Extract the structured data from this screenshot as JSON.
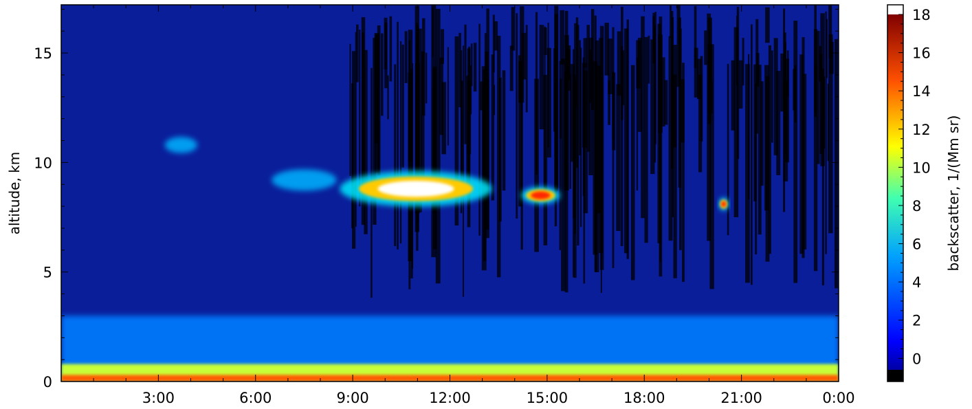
{
  "chart_data": {
    "type": "heatmap",
    "title": "",
    "xlabel": "",
    "ylabel": "altitude, km",
    "x_tick_labels": [
      "3:00",
      "6:00",
      "9:00",
      "12:00",
      "15:00",
      "18:00",
      "21:00",
      "0:00"
    ],
    "x_ticks_hours": [
      3,
      6,
      9,
      12,
      15,
      18,
      21,
      24
    ],
    "xlim_hours": [
      0,
      24
    ],
    "y_ticks": [
      0,
      5,
      10,
      15
    ],
    "ylim": [
      0,
      17.2
    ],
    "colorbar": {
      "label": "backscatter, 1/(Mm sr)",
      "ticks": [
        0,
        2,
        4,
        6,
        8,
        10,
        12,
        14,
        16,
        18
      ],
      "range": [
        -0.6,
        18
      ],
      "colormap": "jet",
      "over_color": "#ffffff",
      "under_color": "#000000"
    },
    "features": [
      {
        "kind": "boundary_layer",
        "t_start": 0,
        "t_end": 24,
        "alt_top_km": 3.0,
        "backscatter": 4
      },
      {
        "kind": "surface_layer",
        "t_start": 0,
        "t_end": 24,
        "alt_top_km": 0.8,
        "backscatter": 10
      },
      {
        "kind": "cirrus",
        "t_start": 3.2,
        "t_end": 4.2,
        "alt_km": 10.8,
        "backscatter": 5
      },
      {
        "kind": "cirrus",
        "t_start": 6.5,
        "t_end": 8.5,
        "alt_km": 9.2,
        "backscatter": 5
      },
      {
        "kind": "cirrus",
        "t_start": 8.6,
        "t_end": 13.3,
        "alt_km": 8.8,
        "backscatter": 18
      },
      {
        "kind": "cirrus",
        "t_start": 14.2,
        "t_end": 15.4,
        "alt_km": 8.5,
        "backscatter": 12
      },
      {
        "kind": "cirrus",
        "t_start": 20.3,
        "t_end": 20.6,
        "alt_km": 8.1,
        "backscatter": 16
      },
      {
        "kind": "noise_region",
        "t_start": 8.9,
        "t_end": 24,
        "alt_bottom_km": 5,
        "alt_top_km": 17.2,
        "backscatter": -0.5
      }
    ]
  }
}
